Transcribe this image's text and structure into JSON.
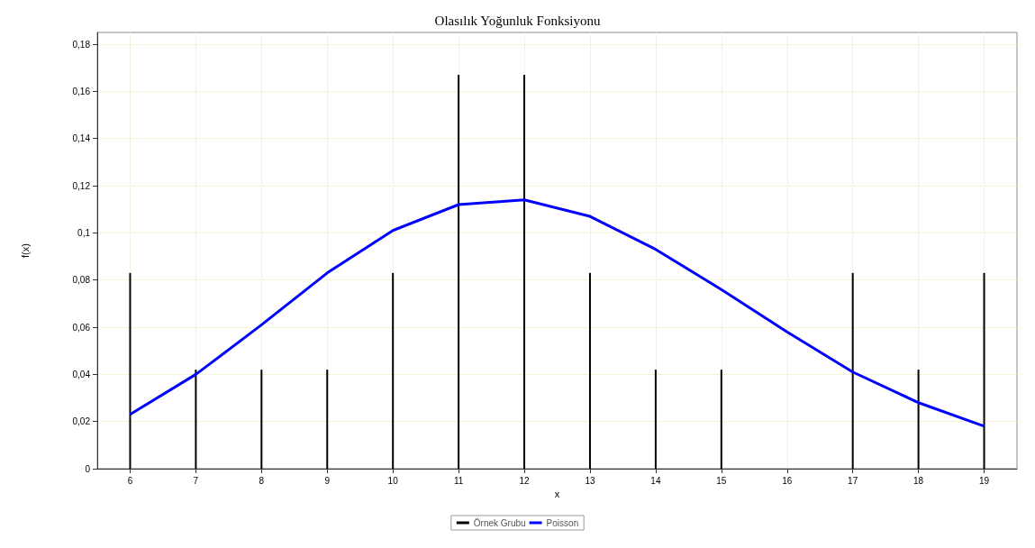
{
  "chart_data": {
    "type": "line",
    "title": "Olasılık Yoğunluk Fonksiyonu",
    "xlabel": "x",
    "ylabel": "f(x)",
    "x": [
      6,
      7,
      8,
      9,
      10,
      11,
      12,
      13,
      14,
      15,
      16,
      17,
      18,
      19
    ],
    "series": [
      {
        "name": "Örnek Grubu",
        "type": "bar",
        "color": "#000000",
        "values": [
          0.083,
          0.042,
          0.042,
          0.042,
          0.083,
          0.167,
          0.167,
          0.083,
          0.042,
          0.042,
          null,
          0.083,
          0.042,
          0.083
        ]
      },
      {
        "name": "Poisson",
        "color": "#0000ff",
        "values": [
          0.023,
          0.04,
          0.061,
          0.083,
          0.101,
          0.112,
          0.114,
          0.107,
          0.093,
          0.076,
          0.058,
          0.041,
          0.028,
          0.018
        ]
      }
    ],
    "xlim": [
      5.5,
      19.5
    ],
    "xticks": [
      6,
      7,
      8,
      9,
      10,
      11,
      12,
      13,
      14,
      15,
      16,
      17,
      18,
      19
    ],
    "ylim": [
      0,
      0.185
    ],
    "yticks": [
      0,
      {
        "value": 0.02,
        "label": "0,02"
      },
      {
        "value": 0.04,
        "label": "0,04"
      },
      {
        "value": 0.06,
        "label": "0,06"
      },
      {
        "value": 0.08,
        "label": "0,08"
      },
      {
        "value": 0.1,
        "label": "0,1"
      },
      {
        "value": 0.12,
        "label": "0,12"
      },
      {
        "value": 0.14,
        "label": "0,14"
      },
      {
        "value": 0.16,
        "label": "0,16"
      },
      {
        "value": 0.18,
        "label": "0,18"
      }
    ],
    "grid": true,
    "legend": "bottom",
    "marker": "none",
    "line_style": "solid"
  }
}
